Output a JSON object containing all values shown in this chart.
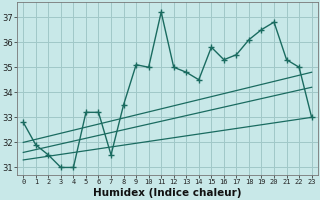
{
  "xlabel": "Humidex (Indice chaleur)",
  "bg_color": "#c8e8e8",
  "grid_color": "#a0c8c8",
  "line_color": "#1a6b60",
  "xlim": [
    -0.5,
    23.5
  ],
  "ylim": [
    30.7,
    37.6
  ],
  "yticks": [
    31,
    32,
    33,
    34,
    35,
    36,
    37
  ],
  "xticks": [
    0,
    1,
    2,
    3,
    4,
    5,
    6,
    7,
    8,
    9,
    10,
    11,
    12,
    13,
    14,
    15,
    16,
    17,
    18,
    19,
    20,
    21,
    22,
    23
  ],
  "main_x": [
    0,
    1,
    2,
    3,
    4,
    5,
    6,
    7,
    8,
    9,
    10,
    11,
    12,
    13,
    14,
    15,
    16,
    17,
    18,
    19,
    20,
    21,
    22,
    23
  ],
  "main_y": [
    32.8,
    31.9,
    31.5,
    31.0,
    31.0,
    33.2,
    33.2,
    31.5,
    33.5,
    35.1,
    35.0,
    37.2,
    35.0,
    34.8,
    34.5,
    35.8,
    35.3,
    35.5,
    36.1,
    36.5,
    36.8,
    35.3,
    35.0,
    33.0
  ],
  "trend_lines": [
    {
      "x": [
        0,
        23
      ],
      "y": [
        32.0,
        34.8
      ]
    },
    {
      "x": [
        0,
        23
      ],
      "y": [
        31.6,
        34.2
      ]
    },
    {
      "x": [
        0,
        23
      ],
      "y": [
        31.3,
        33.0
      ]
    }
  ]
}
